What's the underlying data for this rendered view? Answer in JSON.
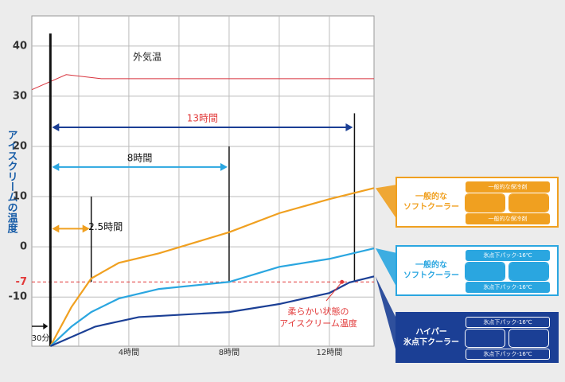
{
  "chart_data": {
    "type": "line",
    "y_label": "アイスクリームの温度",
    "xlim": [
      0.13,
      13.78
    ],
    "ylim": [
      -19.8,
      46
    ],
    "xticks": [
      4,
      8,
      12
    ],
    "xticks_unit": "時間",
    "xgrid": [
      2,
      4,
      6,
      8,
      10,
      12
    ],
    "yticks": [
      40,
      30,
      20,
      10,
      0,
      -10
    ],
    "grid": true,
    "reference": {
      "value": -7,
      "color": "#e23a3a",
      "note": "柔らかい状態の\nアイスクリーム温度",
      "point_hours": 12.5
    },
    "outside": {
      "name": "外気温",
      "color": "#d8323c",
      "x": [
        0.13,
        1.5,
        2.9,
        13.78
      ],
      "values": [
        31.3,
        34.3,
        33.5,
        33.5
      ]
    },
    "start": {
      "hours": 0.87,
      "top": 42.5,
      "label": "30分"
    },
    "durations": [
      {
        "label": "13時間",
        "hours": 13,
        "top": 26.6,
        "level": 23.8,
        "color": "#1b3f95"
      },
      {
        "label": "8時間",
        "hours": 8,
        "top": 20,
        "level": 15.9,
        "color": "#2aa6e0"
      },
      {
        "label": "2.5時間",
        "hours": 2.5,
        "top": 10,
        "level": 3.6,
        "color": "#f0a020"
      }
    ],
    "series": [
      {
        "name": "一般的な\nソフトクーラー",
        "color": "#f0a020",
        "packs": [
          "一般的な保冷剤",
          "一般的な保冷剤"
        ],
        "x": [
          0.87,
          1.71,
          2.5,
          3.6,
          5.2,
          6.8,
          8,
          10,
          12,
          13.78
        ],
        "values": [
          -19.8,
          -12,
          -6.3,
          -3.2,
          -1.3,
          1.1,
          2.9,
          6.7,
          9.5,
          11.7
        ]
      },
      {
        "name": "一般的な\nソフトクーラー",
        "color": "#2aa6e0",
        "packs": [
          "氷点下パック-16℃",
          "氷点下パック-16℃"
        ],
        "x": [
          0.87,
          1.71,
          2.5,
          3.6,
          5.2,
          8,
          10,
          12,
          13.78
        ],
        "values": [
          -19.8,
          -15.9,
          -13,
          -10.3,
          -8.4,
          -7,
          -4,
          -2.4,
          -0.3
        ]
      },
      {
        "name": "ハイパー\n氷点下クーラー",
        "color": "#1b3f95",
        "packs": [
          "氷点下パック-16℃",
          "氷点下パック-16℃"
        ],
        "x": [
          0.87,
          2.66,
          4.4,
          8,
          10,
          12,
          12.8,
          13.78
        ],
        "values": [
          -19.8,
          -15.9,
          -14,
          -13,
          -11.4,
          -9.2,
          -7.1,
          -5.9
        ]
      }
    ]
  }
}
